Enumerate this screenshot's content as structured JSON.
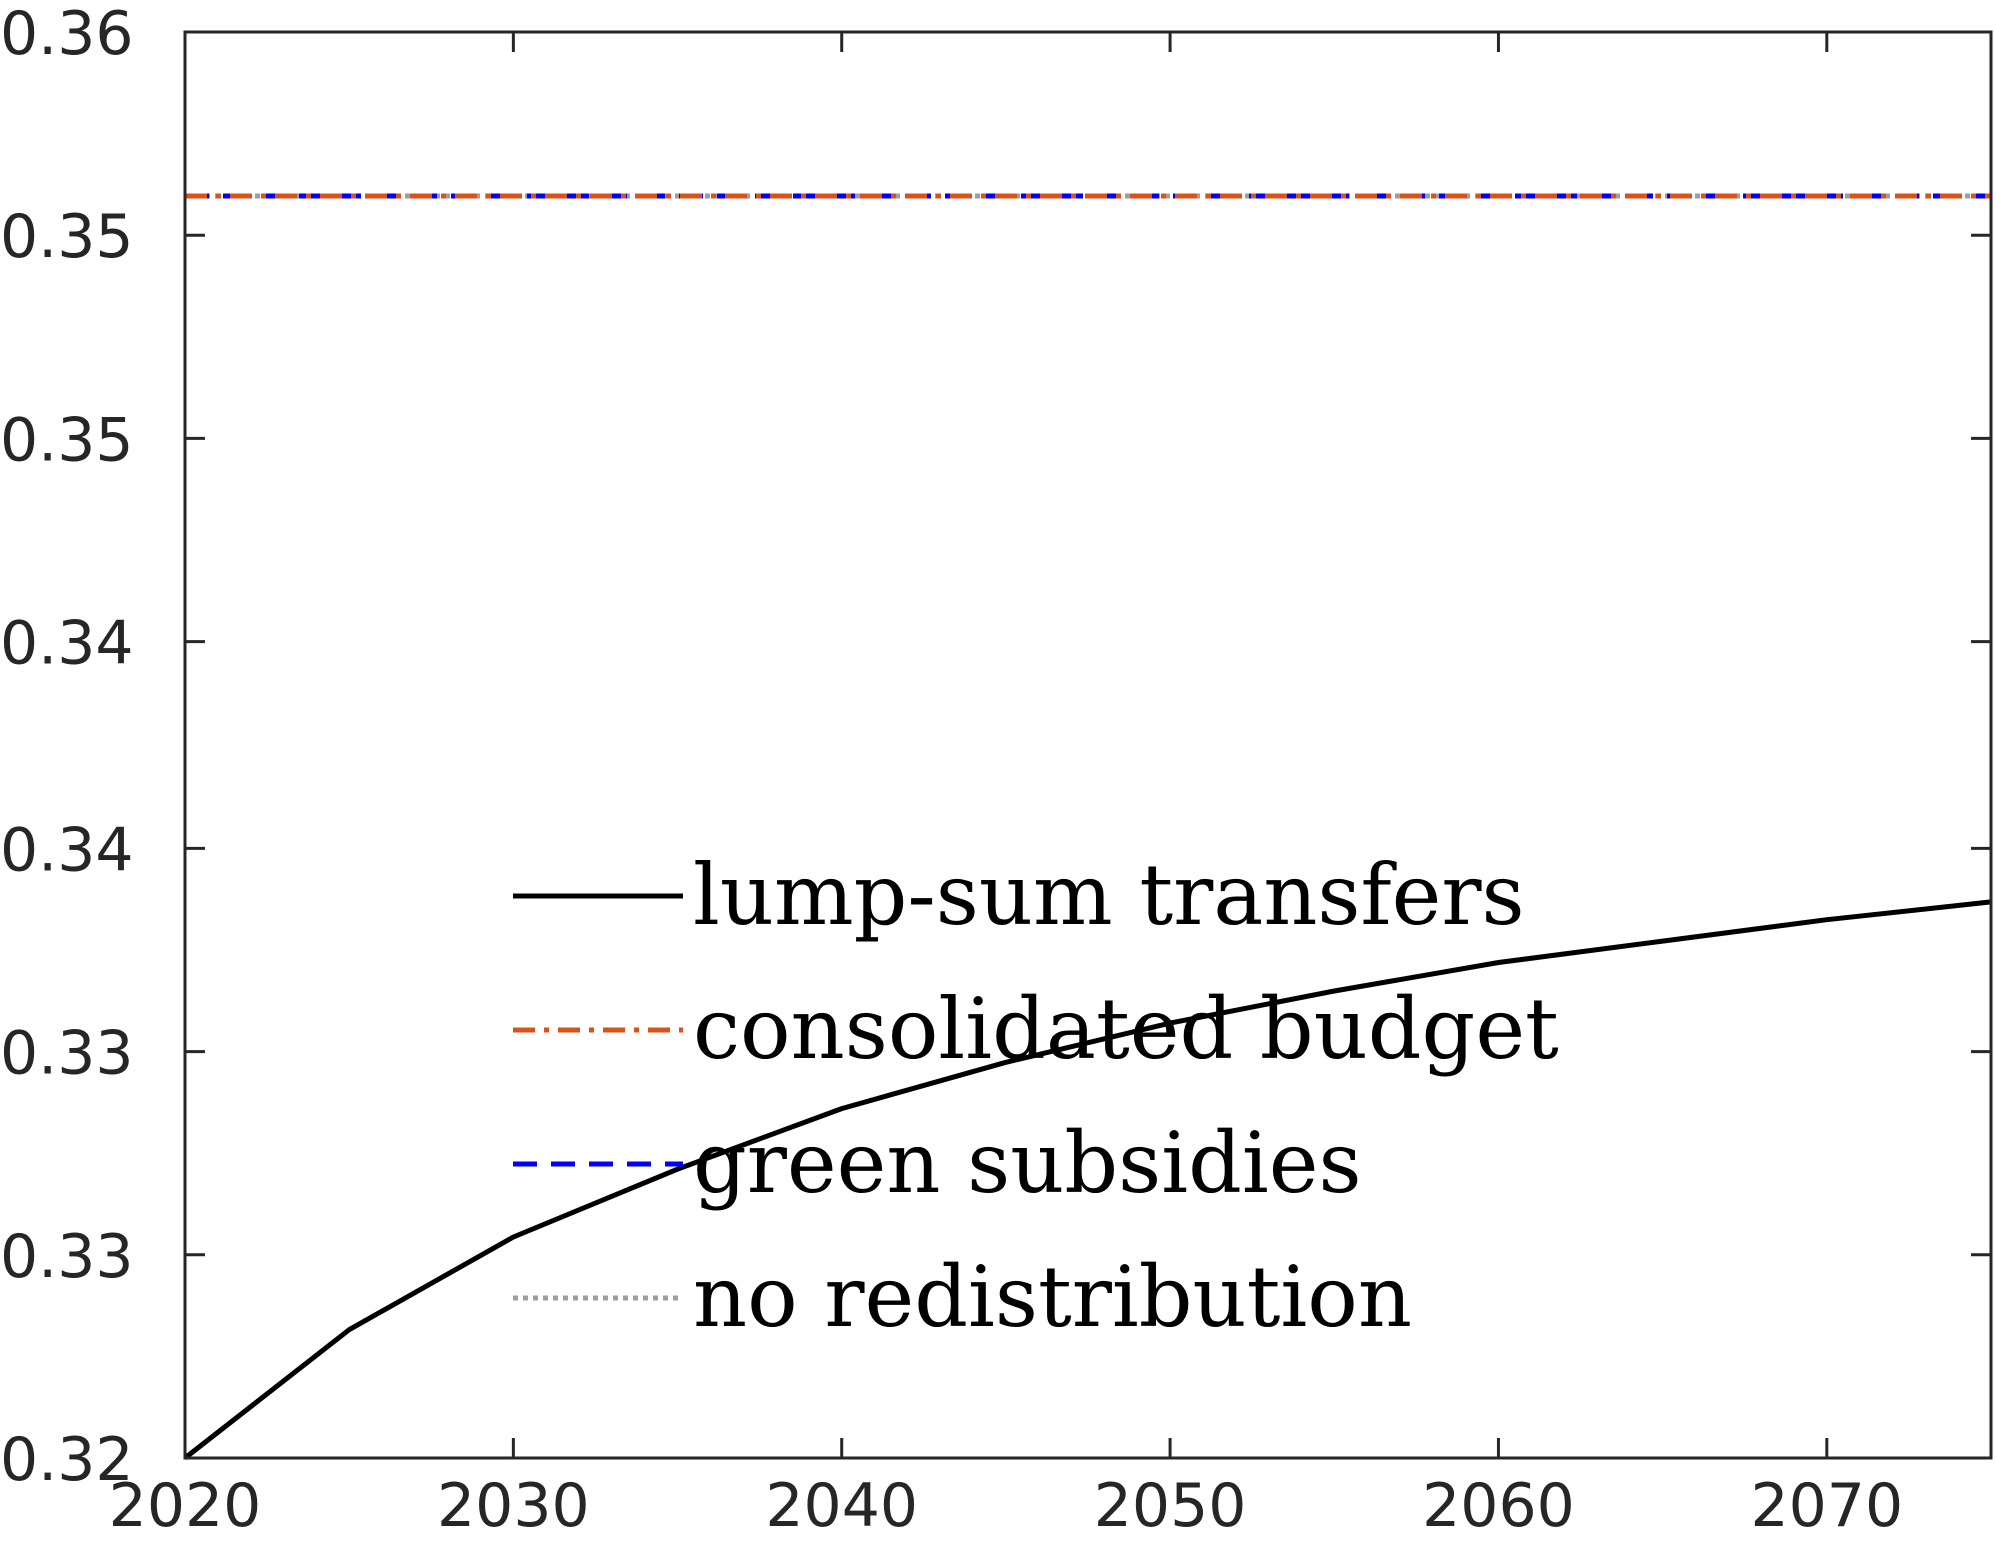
{
  "chart_data": {
    "type": "line",
    "title": "",
    "xlabel": "",
    "ylabel": "",
    "xlim": [
      2020,
      2075
    ],
    "ylim": [
      0.32,
      0.36
    ],
    "x_ticks": [
      2020,
      2030,
      2040,
      2050,
      2060,
      2070
    ],
    "x_tick_labels": [
      "2020",
      "2030",
      "2040",
      "2050",
      "2060",
      "2070"
    ],
    "y_ticks": [
      0.32,
      0.3257,
      0.3314,
      0.3371,
      0.3429,
      0.3486,
      0.3543,
      0.36
    ],
    "y_tick_labels": [
      "0.32",
      "0.33",
      "0.33",
      "0.34",
      "0.34",
      "0.35",
      "0.35",
      "0.36"
    ],
    "grid": false,
    "legend": "center",
    "series": [
      {
        "name": "lump-sum transfers",
        "color": "#000000",
        "dash": "solid",
        "x": [
          2020,
          2025,
          2030,
          2035,
          2040,
          2045,
          2050,
          2055,
          2060,
          2065,
          2070,
          2075
        ],
        "y": [
          0.32,
          0.3236,
          0.3262,
          0.3281,
          0.3298,
          0.3311,
          0.3322,
          0.3331,
          0.3339,
          0.3345,
          0.3351,
          0.3356
        ]
      },
      {
        "name": "consolidated budget",
        "color": "#D95319",
        "dash": "dashdot",
        "x": [
          2020,
          2075
        ],
        "y": [
          0.3554,
          0.3554
        ]
      },
      {
        "name": "green subsidies",
        "color": "#0000FF",
        "dash": "dashed",
        "x": [
          2020,
          2075
        ],
        "y": [
          0.3554,
          0.3554
        ]
      },
      {
        "name": "no redistribution",
        "color": "#9E9E9E",
        "dash": "dotted",
        "x": [
          2020,
          2075
        ],
        "y": [
          0.3554,
          0.3554
        ]
      }
    ]
  }
}
